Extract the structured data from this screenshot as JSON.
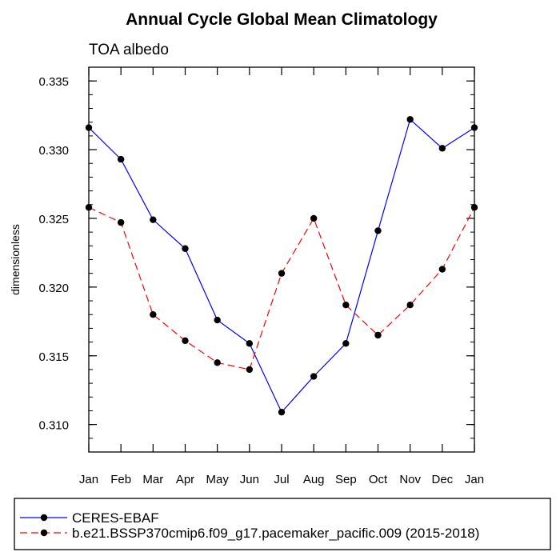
{
  "chart_data": {
    "type": "line",
    "title": "Annual Cycle Global Mean Climatology",
    "subtitle": "TOA albedo",
    "xlabel": "",
    "ylabel": "dimensionless",
    "categories": [
      "Jan",
      "Feb",
      "Mar",
      "Apr",
      "May",
      "Jun",
      "Jul",
      "Aug",
      "Sep",
      "Oct",
      "Nov",
      "Dec",
      "Jan"
    ],
    "ylim": [
      0.308,
      0.336
    ],
    "y_ticks": [
      "0.310",
      "0.315",
      "0.320",
      "0.325",
      "0.330",
      "0.335"
    ],
    "y_tick_values": [
      0.31,
      0.315,
      0.32,
      0.325,
      0.33,
      0.335
    ],
    "y_minor_step": 0.001,
    "grid": false,
    "legend_position": "bottom",
    "series": [
      {
        "name": "CERES-EBAF",
        "color": "#0000ff",
        "dash": "solid",
        "marker": "filled-circle",
        "values": [
          0.3316,
          0.3293,
          0.3249,
          0.3228,
          0.3176,
          0.3159,
          0.3109,
          0.3135,
          0.3159,
          0.3241,
          0.3322,
          0.3301,
          0.3316
        ]
      },
      {
        "name": "b.e21.BSSP370cmip6.f09_g17.pacemaker_pacific.009 (2015-2018)",
        "color": "#ff0000",
        "dash": "dashed",
        "marker": "filled-circle",
        "values": [
          0.3258,
          0.3247,
          0.318,
          0.3161,
          0.3145,
          0.314,
          0.321,
          0.325,
          0.3187,
          0.3165,
          0.3187,
          0.3213,
          0.3258
        ]
      }
    ]
  }
}
